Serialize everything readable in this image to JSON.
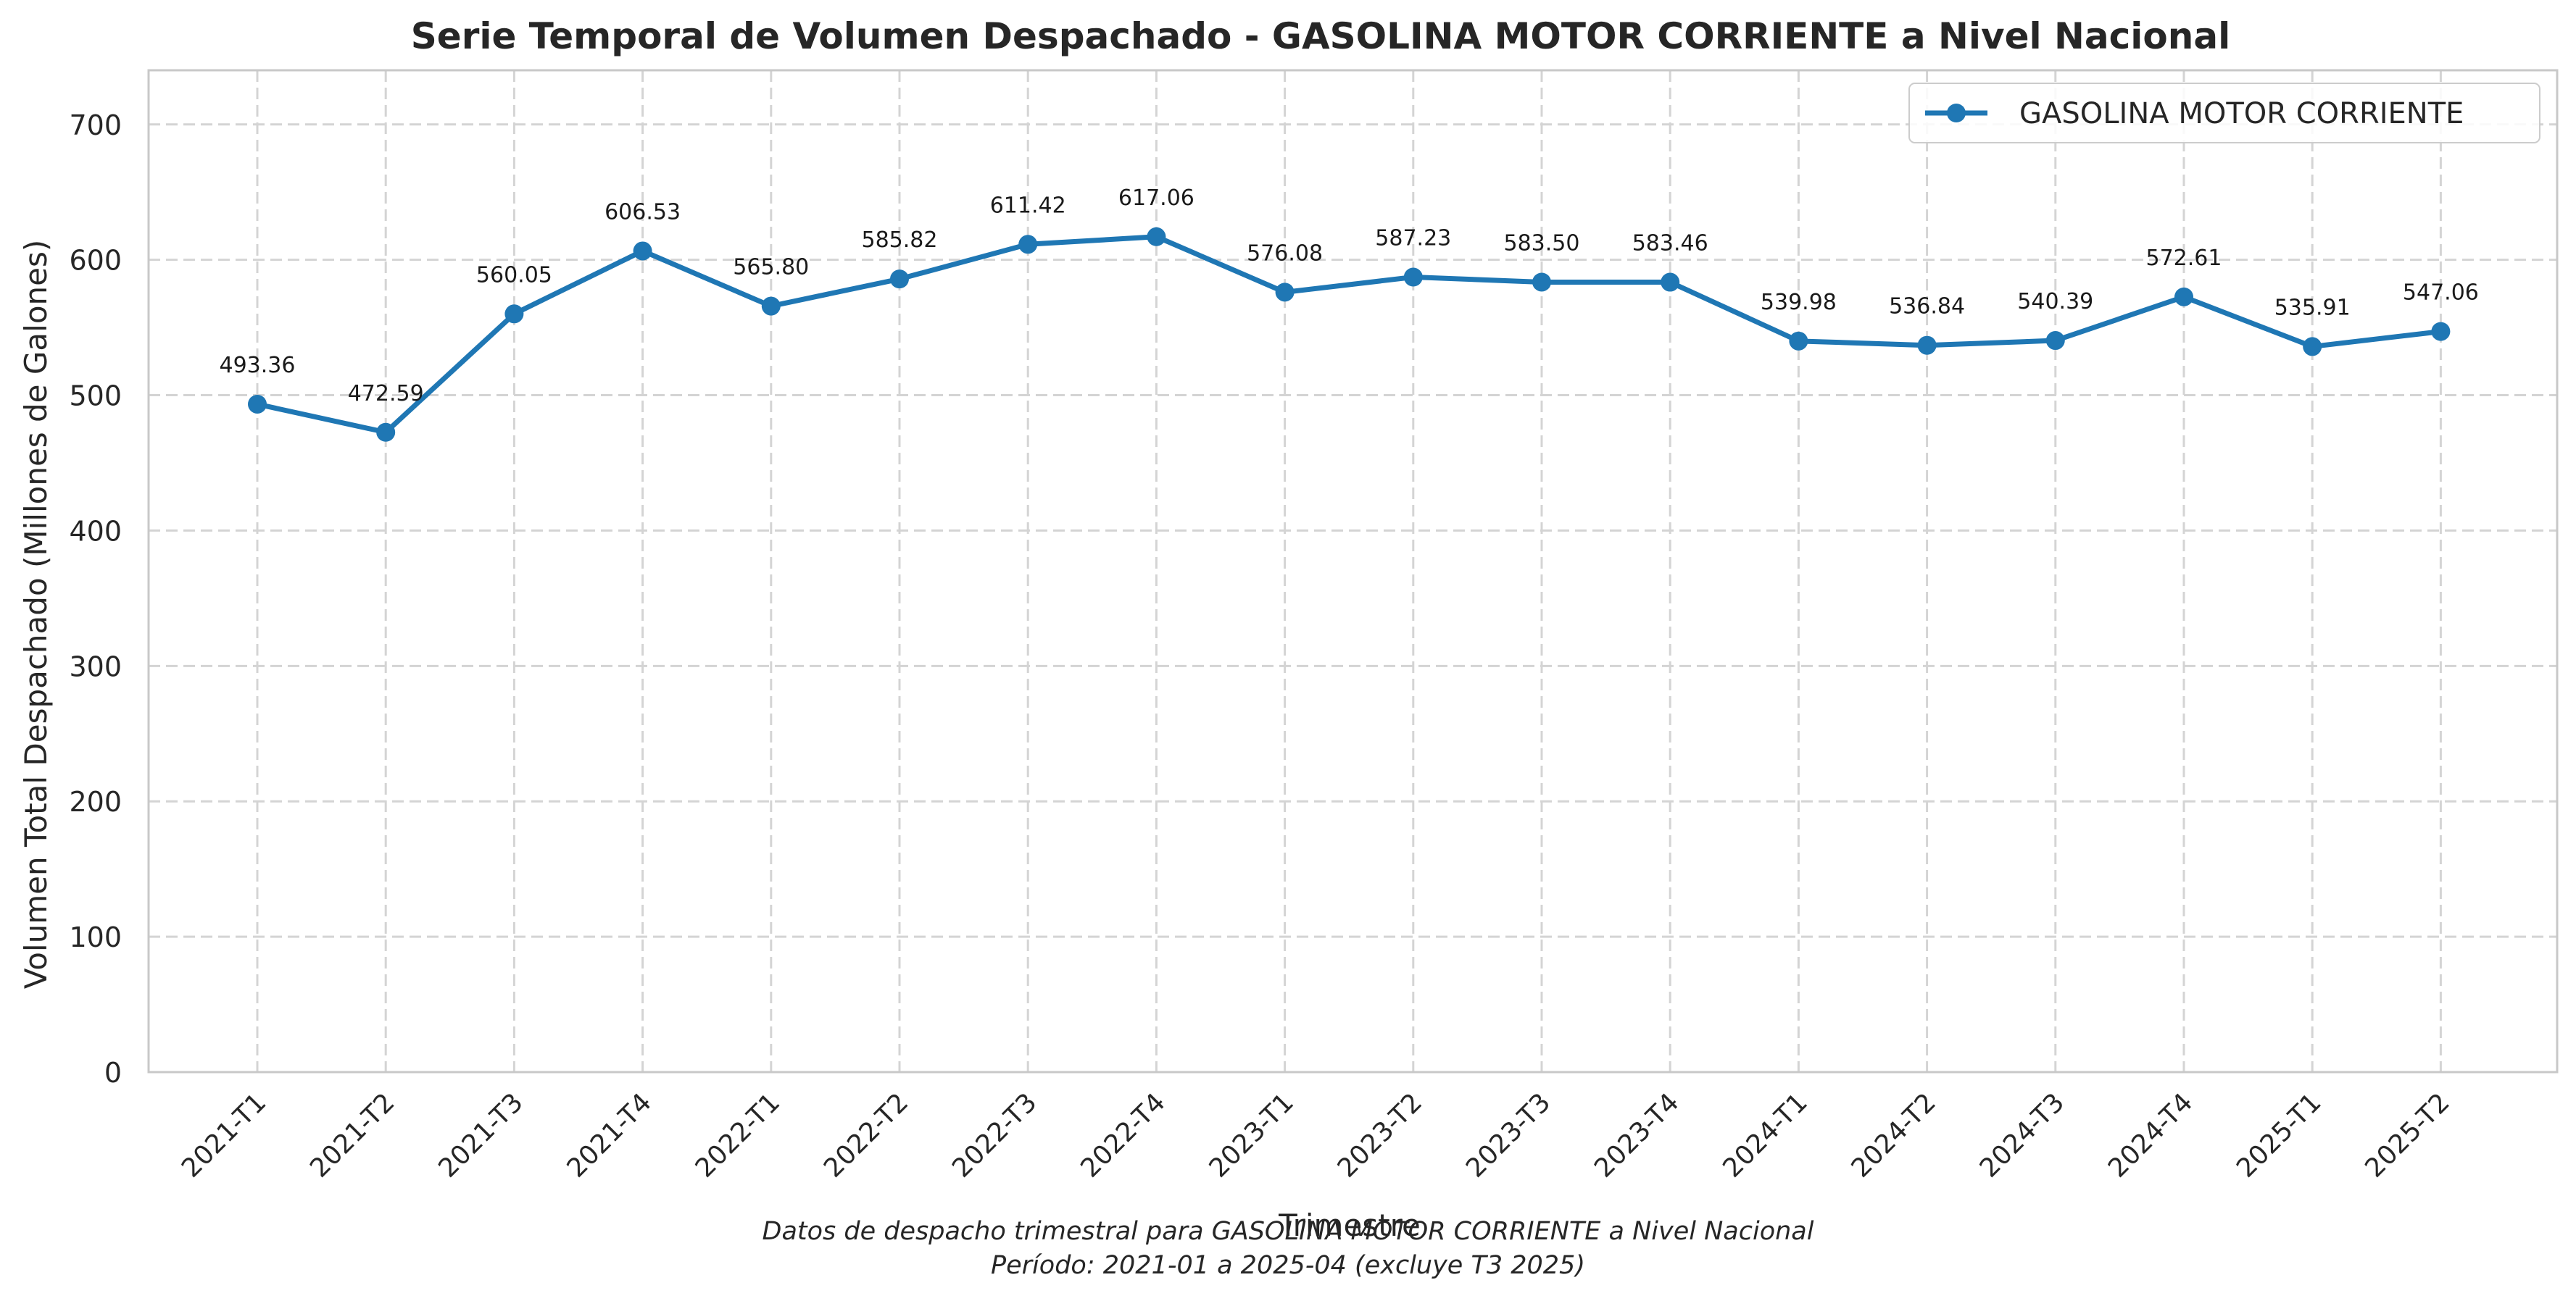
{
  "chart_data": {
    "type": "line",
    "title": "Serie Temporal de Volumen Despachado - GASOLINA MOTOR CORRIENTE a Nivel Nacional",
    "xlabel": "Trimestre",
    "ylabel": "Volumen Total Despachado (Millones de Galones)",
    "categories": [
      "2021-T1",
      "2021-T2",
      "2021-T3",
      "2021-T4",
      "2022-T1",
      "2022-T2",
      "2022-T3",
      "2022-T4",
      "2023-T1",
      "2023-T2",
      "2023-T3",
      "2023-T4",
      "2024-T1",
      "2024-T2",
      "2024-T3",
      "2024-T4",
      "2025-T1",
      "2025-T2"
    ],
    "series": [
      {
        "name": "GASOLINA MOTOR CORRIENTE",
        "values": [
          493.36,
          472.59,
          560.05,
          606.53,
          565.8,
          585.82,
          611.42,
          617.06,
          576.08,
          587.23,
          583.5,
          583.46,
          539.98,
          536.84,
          540.39,
          572.61,
          535.91,
          547.06
        ],
        "labels": [
          "493.36",
          "472.59",
          "560.05",
          "606.53",
          "565.80",
          "585.82",
          "611.42",
          "617.06",
          "576.08",
          "587.23",
          "583.50",
          "583.46",
          "539.98",
          "536.84",
          "540.39",
          "572.61",
          "535.91",
          "547.06"
        ],
        "color": "#1f77b4"
      }
    ],
    "ylim": [
      0,
      740
    ],
    "yticks": [
      "0",
      "100",
      "200",
      "300",
      "400",
      "500",
      "600",
      "700"
    ],
    "grid": true,
    "legend_position": "top-right",
    "caption_line1": "Datos de despacho trimestral para GASOLINA MOTOR CORRIENTE a Nivel Nacional",
    "caption_line2": "Período: 2021-01 a 2025-04 (excluye T3 2025)"
  }
}
